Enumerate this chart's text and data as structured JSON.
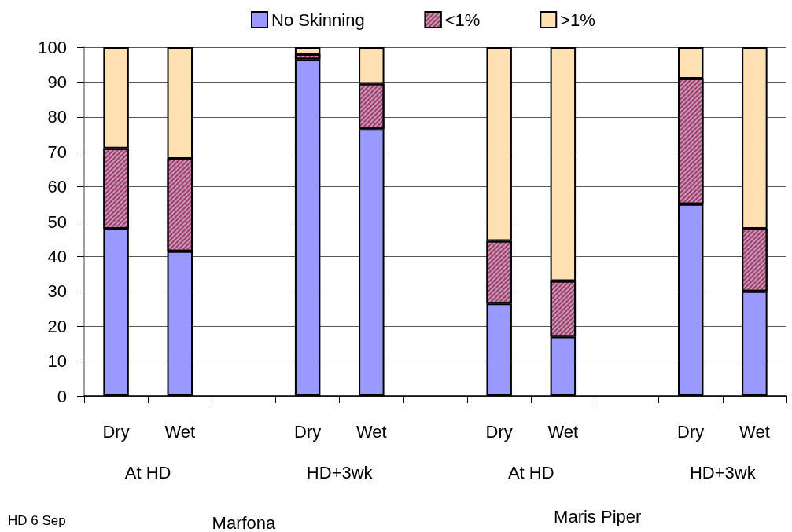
{
  "chart_data": {
    "type": "bar",
    "stacked": true,
    "categories": [
      "Dry",
      "Wet",
      null,
      "Dry",
      "Wet",
      null,
      "Dry",
      "Wet",
      null,
      "Dry",
      "Wet"
    ],
    "series": [
      {
        "name": "No Skinning",
        "color": "#9999ff",
        "values": [
          48,
          41.5,
          null,
          96.5,
          76.5,
          null,
          26.5,
          17,
          null,
          55,
          30
        ]
      },
      {
        "name": "<1%",
        "color": "#cc99b3",
        "values": [
          23,
          26.5,
          null,
          1.5,
          13,
          null,
          18,
          16,
          null,
          36,
          18
        ]
      },
      {
        "name": ">1%",
        "color": "#ffe0b3",
        "values": [
          29,
          32,
          null,
          2,
          10.5,
          null,
          55.5,
          67,
          null,
          9,
          52
        ]
      }
    ],
    "ylim": [
      0,
      100
    ],
    "yticks": [
      0,
      10,
      20,
      30,
      40,
      50,
      60,
      70,
      80,
      90,
      100
    ],
    "grid": "y",
    "legend": "top",
    "annotations": [
      "At HD",
      "HD+3wk",
      "At HD",
      "HD+3wk",
      "Marfona",
      "Maris Piper",
      "HD 6 Sep"
    ]
  }
}
